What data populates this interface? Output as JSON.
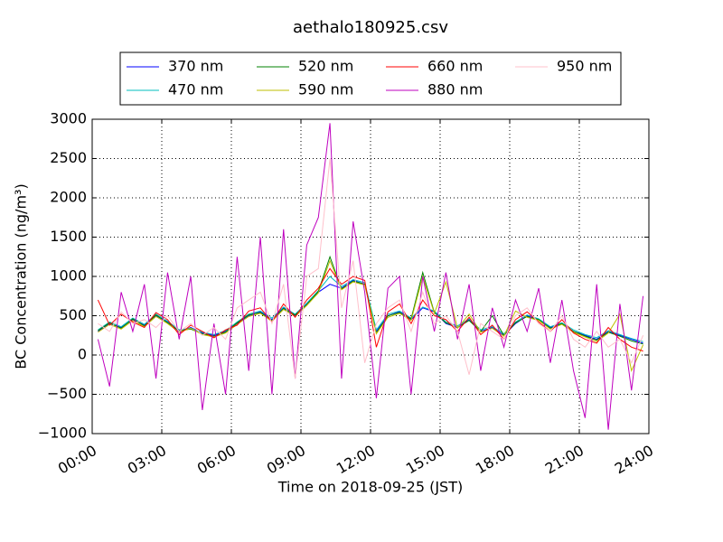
{
  "chart_data": {
    "type": "line",
    "title": "aethalo180925.csv",
    "x_label": "Time on 2018-09-25 (JST)",
    "y_label": "BC Concentration (ng/m³)",
    "x": [
      0.25,
      0.75,
      1.25,
      1.75,
      2.25,
      2.75,
      3.25,
      3.75,
      4.25,
      4.75,
      5.25,
      5.75,
      6.25,
      6.75,
      7.25,
      7.75,
      8.25,
      8.75,
      9.25,
      9.75,
      10.25,
      10.75,
      11.25,
      11.75,
      12.25,
      12.75,
      13.25,
      13.75,
      14.25,
      14.75,
      15.25,
      15.75,
      16.25,
      16.75,
      17.25,
      17.75,
      18.25,
      18.75,
      19.25,
      19.75,
      20.25,
      20.75,
      21.25,
      21.75,
      22.25,
      22.75,
      23.25,
      23.75
    ],
    "xlim": [
      0,
      24
    ],
    "xticks": [
      {
        "value": 0,
        "label": "00:00"
      },
      {
        "value": 3,
        "label": "03:00"
      },
      {
        "value": 6,
        "label": "06:00"
      },
      {
        "value": 9,
        "label": "09:00"
      },
      {
        "value": 12,
        "label": "12:00"
      },
      {
        "value": 15,
        "label": "15:00"
      },
      {
        "value": 18,
        "label": "18:00"
      },
      {
        "value": 21,
        "label": "21:00"
      },
      {
        "value": 24,
        "label": "24:00"
      }
    ],
    "ylim": [
      -1000,
      3000
    ],
    "yticks": [
      {
        "value": -1000,
        "label": "−1000"
      },
      {
        "value": -500,
        "label": "−500"
      },
      0,
      500,
      1000,
      1500,
      2000,
      2500,
      3000
    ],
    "grid": true,
    "legend": "top",
    "series": [
      {
        "name": "370 nm",
        "color": "#0000ff",
        "values": [
          300,
          400,
          350,
          450,
          380,
          500,
          420,
          300,
          350,
          280,
          250,
          300,
          400,
          500,
          550,
          450,
          600,
          500,
          650,
          800,
          900,
          850,
          950,
          900,
          300,
          500,
          550,
          450,
          600,
          550,
          400,
          350,
          450,
          300,
          350,
          250,
          400,
          500,
          450,
          350,
          400,
          300,
          250,
          200,
          300,
          250,
          200,
          150
        ]
      },
      {
        "name": "470 nm",
        "color": "#00bfbf",
        "values": [
          320,
          420,
          360,
          470,
          390,
          520,
          430,
          320,
          340,
          290,
          260,
          310,
          420,
          520,
          560,
          470,
          610,
          520,
          660,
          820,
          1000,
          870,
          960,
          920,
          320,
          520,
          560,
          470,
          610,
          560,
          420,
          370,
          460,
          320,
          360,
          270,
          420,
          510,
          460,
          360,
          410,
          320,
          260,
          220,
          310,
          260,
          210,
          170
        ]
      },
      {
        "name": "520 nm",
        "color": "#008000",
        "values": [
          310,
          410,
          340,
          460,
          370,
          510,
          410,
          310,
          330,
          270,
          240,
          290,
          410,
          510,
          540,
          440,
          590,
          510,
          640,
          810,
          1250,
          840,
          940,
          900,
          280,
          500,
          540,
          460,
          1050,
          540,
          410,
          350,
          440,
          300,
          500,
          250,
          410,
          490,
          450,
          340,
          400,
          300,
          240,
          190,
          290,
          240,
          180,
          140
        ]
      },
      {
        "name": "590 nm",
        "color": "#bfbf00",
        "values": [
          290,
          390,
          330,
          440,
          360,
          490,
          400,
          290,
          340,
          260,
          230,
          280,
          390,
          490,
          530,
          430,
          580,
          490,
          630,
          790,
          1200,
          830,
          930,
          890,
          270,
          480,
          530,
          440,
          1000,
          530,
          930,
          340,
          520,
          290,
          340,
          240,
          560,
          480,
          440,
          330,
          390,
          290,
          230,
          170,
          280,
          520,
          -200,
          130
        ]
      },
      {
        "name": "660 nm",
        "color": "#ff0000",
        "values": [
          700,
          380,
          520,
          420,
          350,
          540,
          450,
          260,
          380,
          300,
          220,
          320,
          380,
          560,
          600,
          420,
          650,
          480,
          700,
          850,
          1100,
          900,
          1000,
          950,
          100,
          550,
          650,
          400,
          700,
          500,
          450,
          300,
          480,
          260,
          380,
          200,
          450,
          550,
          420,
          300,
          450,
          280,
          200,
          150,
          350,
          200,
          100,
          50
        ]
      },
      {
        "name": "880 nm",
        "color": "#bf00bf",
        "values": [
          200,
          -400,
          800,
          300,
          900,
          -300,
          1050,
          200,
          1000,
          -700,
          400,
          -500,
          1250,
          -200,
          1500,
          -500,
          1600,
          -300,
          1400,
          1750,
          2950,
          -300,
          1700,
          800,
          -550,
          850,
          1000,
          -500,
          1000,
          300,
          1050,
          200,
          900,
          -200,
          600,
          100,
          700,
          300,
          850,
          -100,
          700,
          -200,
          -800,
          900,
          -950,
          650,
          -450,
          750
        ]
      },
      {
        "name": "950 nm",
        "color": "#ffc0cb",
        "values": [
          400,
          300,
          550,
          400,
          450,
          350,
          500,
          300,
          400,
          250,
          350,
          200,
          600,
          700,
          800,
          400,
          900,
          -300,
          1000,
          1100,
          2500,
          600,
          1200,
          -100,
          400,
          600,
          700,
          300,
          800,
          400,
          500,
          300,
          -250,
          400,
          300,
          200,
          500,
          600,
          400,
          300,
          500,
          200,
          100,
          300,
          100,
          200,
          -100,
          250
        ]
      }
    ]
  }
}
